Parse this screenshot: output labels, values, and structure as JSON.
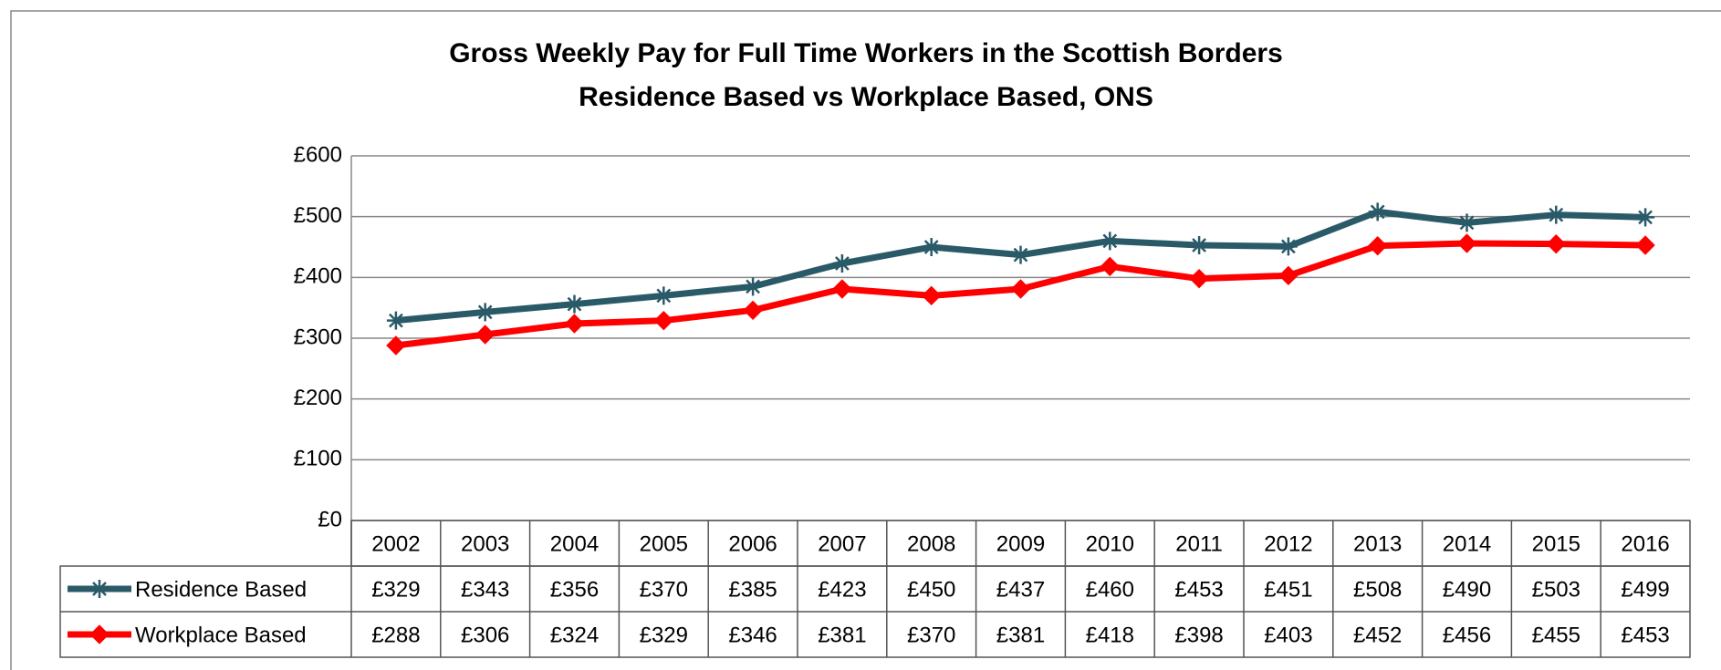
{
  "chart_data": {
    "type": "line",
    "title": "Gross Weekly Pay for Full Time Workers in the Scottish Borders",
    "subtitle": "Residence Based vs Workplace Based, ONS",
    "categories": [
      "2002",
      "2003",
      "2004",
      "2005",
      "2006",
      "2007",
      "2008",
      "2009",
      "2010",
      "2011",
      "2012",
      "2013",
      "2014",
      "2015",
      "2016"
    ],
    "series": [
      {
        "name": "Residence Based",
        "color": "#2a5a68",
        "marker": "star",
        "values": [
          329,
          343,
          356,
          370,
          385,
          423,
          450,
          437,
          460,
          453,
          451,
          508,
          490,
          503,
          499
        ],
        "value_labels": [
          "£329",
          "£343",
          "£356",
          "£370",
          "£385",
          "£423",
          "£450",
          "£437",
          "£460",
          "£453",
          "£451",
          "£508",
          "£490",
          "£503",
          "£499"
        ]
      },
      {
        "name": "Workplace Based",
        "color": "#ff0000",
        "marker": "diamond",
        "values": [
          288,
          306,
          324,
          329,
          346,
          381,
          370,
          381,
          418,
          398,
          403,
          452,
          456,
          455,
          453
        ],
        "value_labels": [
          "£288",
          "£306",
          "£324",
          "£329",
          "£346",
          "£381",
          "£370",
          "£381",
          "£418",
          "£398",
          "£403",
          "£452",
          "£456",
          "£455",
          "£453"
        ]
      }
    ],
    "ylim": [
      0,
      600
    ],
    "yticks": [
      {
        "value": 0,
        "label": "£0"
      },
      {
        "value": 100,
        "label": "£100"
      },
      {
        "value": 200,
        "label": "£200"
      },
      {
        "value": 300,
        "label": "£300"
      },
      {
        "value": 400,
        "label": "£400"
      },
      {
        "value": 500,
        "label": "£500"
      },
      {
        "value": 600,
        "label": "£600"
      }
    ],
    "grid": true
  }
}
